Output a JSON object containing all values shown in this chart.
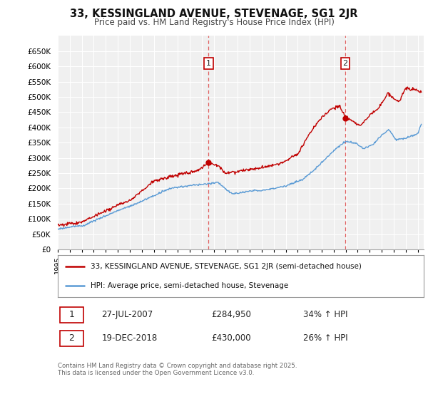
{
  "title": "33, KESSINGLAND AVENUE, STEVENAGE, SG1 2JR",
  "subtitle": "Price paid vs. HM Land Registry's House Price Index (HPI)",
  "ylim": [
    0,
    700000
  ],
  "yticks": [
    0,
    50000,
    100000,
    150000,
    200000,
    250000,
    300000,
    350000,
    400000,
    450000,
    500000,
    550000,
    600000,
    650000
  ],
  "ytick_labels": [
    "£0",
    "£50K",
    "£100K",
    "£150K",
    "£200K",
    "£250K",
    "£300K",
    "£350K",
    "£400K",
    "£450K",
    "£500K",
    "£550K",
    "£600K",
    "£650K"
  ],
  "hpi_color": "#5b9bd5",
  "price_color": "#c00000",
  "vline_color": "#e06060",
  "background_color": "#ffffff",
  "chart_bg": "#f0f0f0",
  "grid_color": "#ffffff",
  "purchase1_date_num": 2007.57,
  "purchase1_label": "27-JUL-2007",
  "purchase1_price": 284950,
  "purchase1_hpi_pct": "34% ↑ HPI",
  "purchase2_date_num": 2018.96,
  "purchase2_label": "19-DEC-2018",
  "purchase2_price": 430000,
  "purchase2_hpi_pct": "26% ↑ HPI",
  "legend_line1": "33, KESSINGLAND AVENUE, STEVENAGE, SG1 2JR (semi-detached house)",
  "legend_line2": "HPI: Average price, semi-detached house, Stevenage",
  "footnote": "Contains HM Land Registry data © Crown copyright and database right 2025.\nThis data is licensed under the Open Government Licence v3.0.",
  "xlim_start": 1995.0,
  "xlim_end": 2025.5
}
